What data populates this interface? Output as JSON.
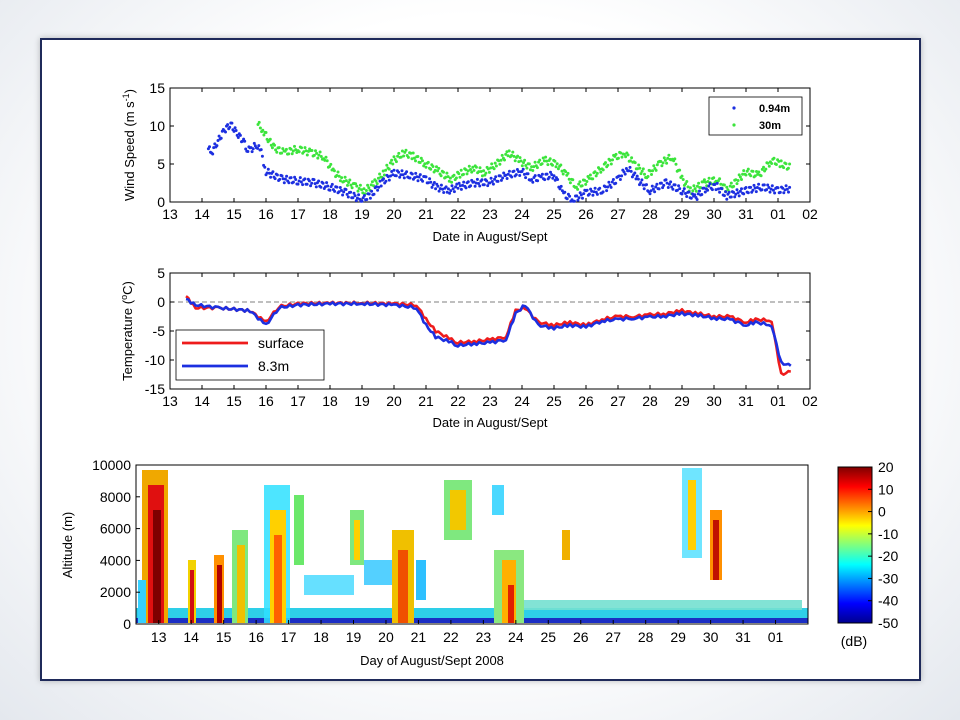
{
  "colors": {
    "blue": "#1c2fe0",
    "green": "#3ce43c",
    "red": "#ee1c1c",
    "frame": "#1f2a5a"
  },
  "chart_data": [
    {
      "type": "scatter",
      "xlabel": "Date in August/Sept",
      "ylabel": "Wind Speed (m s-1)",
      "ylabel_parts": {
        "main": "Wind Speed (m s",
        "sup": "-1",
        "close": ")"
      },
      "xlim": [
        13,
        33
      ],
      "ylim": [
        0,
        15
      ],
      "yticks": [
        "0",
        "5",
        "10",
        "15"
      ],
      "xticks": [
        "13",
        "14",
        "15",
        "16",
        "17",
        "18",
        "19",
        "20",
        "21",
        "22",
        "23",
        "24",
        "25",
        "26",
        "27",
        "28",
        "29",
        "30",
        "31",
        "01",
        "02"
      ],
      "legend_position": "top-right",
      "series": [
        {
          "name": "0.94m",
          "color": "#1c2fe0",
          "points": [
            [
              14.2,
              7
            ],
            [
              14.3,
              6.5
            ],
            [
              14.5,
              8
            ],
            [
              14.7,
              9.5
            ],
            [
              14.9,
              10.2
            ],
            [
              15.1,
              9
            ],
            [
              15.3,
              8
            ],
            [
              15.4,
              7
            ],
            [
              15.5,
              6.8
            ],
            [
              15.7,
              7.5
            ],
            [
              15.85,
              6.5
            ],
            [
              16.0,
              4
            ],
            [
              16.5,
              3
            ],
            [
              17,
              2.8
            ],
            [
              17.5,
              2.5
            ],
            [
              18,
              2
            ],
            [
              18.5,
              1.2
            ],
            [
              19,
              0.3
            ],
            [
              19.3,
              1
            ],
            [
              19.6,
              2.5
            ],
            [
              20,
              3.8
            ],
            [
              20.5,
              3.5
            ],
            [
              21,
              3
            ],
            [
              21.3,
              2
            ],
            [
              21.7,
              1.5
            ],
            [
              22,
              2
            ],
            [
              22.5,
              2.5
            ],
            [
              23,
              2.6
            ],
            [
              23.5,
              3.5
            ],
            [
              24,
              4
            ],
            [
              24.3,
              3
            ],
            [
              24.6,
              3.2
            ],
            [
              25,
              3.6
            ],
            [
              25.3,
              1
            ],
            [
              25.6,
              0.3
            ],
            [
              26,
              1.2
            ],
            [
              26.5,
              1.5
            ],
            [
              27,
              3
            ],
            [
              27.3,
              4.5
            ],
            [
              27.6,
              3
            ],
            [
              28,
              1.5
            ],
            [
              28.5,
              2.5
            ],
            [
              29,
              1.5
            ],
            [
              29.4,
              0.5
            ],
            [
              29.8,
              2
            ],
            [
              30.1,
              2
            ],
            [
              30.4,
              0.8
            ],
            [
              31,
              1.5
            ],
            [
              31.5,
              2
            ],
            [
              32,
              1.5
            ],
            [
              32.4,
              1.8
            ]
          ]
        },
        {
          "name": "30m",
          "color": "#3ce43c",
          "points": [
            [
              15.75,
              10.2
            ],
            [
              15.9,
              9.5
            ],
            [
              16.1,
              8
            ],
            [
              16.3,
              7
            ],
            [
              16.6,
              6.5
            ],
            [
              17,
              7
            ],
            [
              17.4,
              6.5
            ],
            [
              17.8,
              6
            ],
            [
              18.1,
              4
            ],
            [
              18.4,
              3
            ],
            [
              18.8,
              2
            ],
            [
              19.1,
              1.5
            ],
            [
              19.4,
              2.5
            ],
            [
              19.7,
              4
            ],
            [
              20,
              5.5
            ],
            [
              20.3,
              6.5
            ],
            [
              20.6,
              6
            ],
            [
              21,
              5
            ],
            [
              21.4,
              4
            ],
            [
              21.8,
              3
            ],
            [
              22.1,
              3.8
            ],
            [
              22.5,
              4.5
            ],
            [
              22.8,
              3.8
            ],
            [
              23.2,
              5
            ],
            [
              23.6,
              6.5
            ],
            [
              23.9,
              5.5
            ],
            [
              24.3,
              4.5
            ],
            [
              24.7,
              5.5
            ],
            [
              25.1,
              5
            ],
            [
              25.4,
              3.5
            ],
            [
              25.7,
              2
            ],
            [
              26.1,
              3
            ],
            [
              26.5,
              4.5
            ],
            [
              26.9,
              5.8
            ],
            [
              27.2,
              6.5
            ],
            [
              27.5,
              5
            ],
            [
              27.9,
              3.5
            ],
            [
              28.3,
              5
            ],
            [
              28.7,
              6
            ],
            [
              29.0,
              3
            ],
            [
              29.3,
              1.5
            ],
            [
              29.7,
              2.5
            ],
            [
              30.1,
              3
            ],
            [
              30.4,
              1.5
            ],
            [
              31.0,
              4
            ],
            [
              31.4,
              3.5
            ],
            [
              31.8,
              5.5
            ],
            [
              32.1,
              5
            ],
            [
              32.4,
              4.5
            ]
          ]
        }
      ]
    },
    {
      "type": "line",
      "xlabel": "Date in August/Sept",
      "ylabel": "Temperature (oC)",
      "ylabel_parts": {
        "main": "Temperature (",
        "sup": "o",
        "unit": "C",
        "close": ")"
      },
      "xlim": [
        13,
        33
      ],
      "ylim": [
        -15,
        5
      ],
      "yticks": [
        "-15",
        "-10",
        "-5",
        "0",
        "5"
      ],
      "xticks": [
        "13",
        "14",
        "15",
        "16",
        "17",
        "18",
        "19",
        "20",
        "21",
        "22",
        "23",
        "24",
        "25",
        "26",
        "27",
        "28",
        "29",
        "30",
        "31",
        "01",
        "02"
      ],
      "legend_position": "bottom-left",
      "series": [
        {
          "name": "surface",
          "color": "#ee1c1c",
          "x": [
            13.5,
            13.8,
            14.5,
            15.5,
            16,
            16.4,
            17,
            18,
            19,
            20,
            20.7,
            21,
            21.3,
            21.8,
            22,
            22.5,
            23,
            23.5,
            23.8,
            24.1,
            24.5,
            25,
            25.5,
            26,
            26.5,
            27,
            27.5,
            28,
            28.5,
            29,
            29.5,
            30,
            30.5,
            31,
            31.3,
            31.8,
            32.1,
            32.4
          ],
          "y": [
            1,
            -1,
            -1,
            -1.5,
            -3.5,
            -0.8,
            -0.3,
            -0.2,
            -0.2,
            -0.3,
            -0.5,
            -3,
            -5,
            -6.5,
            -7,
            -6.8,
            -6.5,
            -6,
            -1.5,
            -1,
            -3.5,
            -4,
            -3.5,
            -4,
            -3,
            -2.5,
            -2.5,
            -2.2,
            -2,
            -1.5,
            -2,
            -2.5,
            -2.5,
            -3.5,
            -3,
            -3.2,
            -12.5,
            -12
          ]
        },
        {
          "name": "8.3m",
          "color": "#1c2fe0",
          "x": [
            13.5,
            13.8,
            14.5,
            15.5,
            16,
            16.4,
            17,
            18,
            19,
            20,
            20.7,
            21,
            21.3,
            21.8,
            22,
            22.5,
            23,
            23.5,
            23.8,
            24.1,
            24.5,
            25,
            25.5,
            26,
            26.5,
            27,
            27.5,
            28,
            28.5,
            29,
            29.5,
            30,
            30.5,
            31,
            31.3,
            31.8,
            32.1,
            32.4
          ],
          "y": [
            0.5,
            -0.5,
            -1,
            -1.5,
            -4,
            -1,
            -0.5,
            -0.3,
            -0.3,
            -0.5,
            -1,
            -4,
            -6,
            -7,
            -7.5,
            -7.2,
            -7,
            -6.5,
            -2,
            -0.5,
            -4,
            -4.5,
            -4,
            -4.3,
            -3.3,
            -3,
            -2.8,
            -2.6,
            -2.4,
            -2,
            -2.3,
            -2.8,
            -3,
            -4,
            -3.5,
            -4,
            -10.5,
            -11
          ]
        }
      ]
    },
    {
      "type": "heatmap",
      "xlabel": "Day of August/Sept 2008",
      "ylabel": "Altitude (m)",
      "xlim": [
        12.3,
        33
      ],
      "ylim": [
        0,
        10000
      ],
      "yticks": [
        "0",
        "2000",
        "4000",
        "6000",
        "8000",
        "10000"
      ],
      "xticks": [
        "13",
        "14",
        "15",
        "16",
        "17",
        "18",
        "19",
        "20",
        "21",
        "22",
        "23",
        "24",
        "25",
        "26",
        "27",
        "28",
        "29",
        "30",
        "31",
        "01"
      ],
      "colorbar": {
        "ticks": [
          "20",
          "10",
          "0",
          "-10",
          "-20",
          "-30",
          "-40",
          "-50"
        ],
        "label": "(dB)",
        "range": [
          -50,
          20
        ]
      }
    }
  ]
}
